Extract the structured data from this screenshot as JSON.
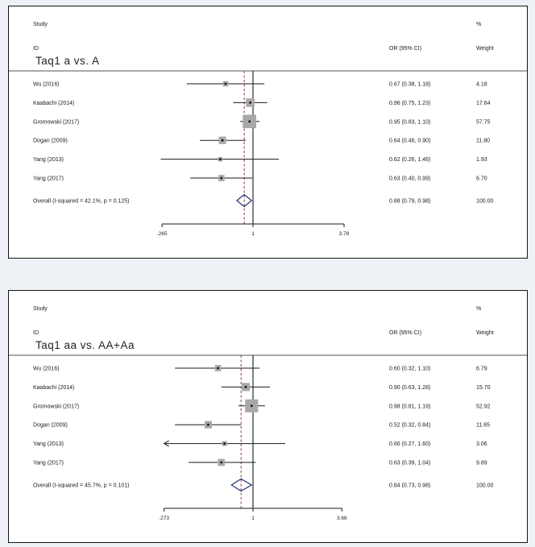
{
  "page": {
    "background_color": "#eef1f6",
    "panel_background_color": "#ffffff",
    "panel_border_color": "#141414"
  },
  "style": {
    "text_color": "#1a1a1a",
    "line_color": "#1a1a1a",
    "square_color": "#a8a8a8",
    "diamond_color": "#273272",
    "dashed_line_color": "#90353b"
  },
  "chart_data": [
    {
      "type": "forest",
      "title": "Taq1 a vs. A",
      "columns": {
        "study": "Study",
        "id": "ID",
        "percent": "%",
        "or_ci": "OR (95% CI)",
        "weight": "Weight"
      },
      "axis": {
        "scale": "log",
        "null_value": 1,
        "ticks": [
          {
            "value": 0.265,
            "label": ".265"
          },
          {
            "value": 1,
            "label": "1"
          },
          {
            "value": 3.78,
            "label": "3.78"
          }
        ]
      },
      "studies": [
        {
          "id": "Wu (2016)",
          "or": 0.67,
          "ci_low": 0.38,
          "ci_high": 1.18,
          "or_ci_text": "0.67 (0.38, 1.18)",
          "weight": 4.18,
          "weight_text": "4.18",
          "clip_low": false
        },
        {
          "id": "Kaabachi (2014)",
          "or": 0.96,
          "ci_low": 0.75,
          "ci_high": 1.23,
          "or_ci_text": "0.96 (0.75, 1.23)",
          "weight": 17.64,
          "weight_text": "17.64",
          "clip_low": false
        },
        {
          "id": "Gromowski (2017)",
          "or": 0.95,
          "ci_low": 0.83,
          "ci_high": 1.1,
          "or_ci_text": "0.95 (0.83, 1.10)",
          "weight": 57.75,
          "weight_text": "57.75",
          "clip_low": false
        },
        {
          "id": "Dogan (2009)",
          "or": 0.64,
          "ci_low": 0.46,
          "ci_high": 0.9,
          "or_ci_text": "0.64 (0.46, 0.90)",
          "weight": 11.8,
          "weight_text": "11.80",
          "clip_low": false
        },
        {
          "id": "Yang (2013)",
          "or": 0.62,
          "ci_low": 0.26,
          "ci_high": 1.46,
          "or_ci_text": "0.62 (0.26, 1.46)",
          "weight": 1.93,
          "weight_text": "1.93",
          "clip_low": false
        },
        {
          "id": "Yang (2017)",
          "or": 0.63,
          "ci_low": 0.4,
          "ci_high": 0.99,
          "or_ci_text": "0.63 (0.40, 0.99)",
          "weight": 6.7,
          "weight_text": "6.70",
          "clip_low": false
        }
      ],
      "overall": {
        "label": "Overall (I-squared = 42.1%, p = 0.125)",
        "or": 0.88,
        "ci_low": 0.79,
        "ci_high": 0.98,
        "or_ci_text": "0.88 (0.79, 0.98)",
        "weight_text": "100.00"
      }
    },
    {
      "type": "forest",
      "title": "Taq1 aa vs. AA+Aa",
      "columns": {
        "study": "Study",
        "id": "ID",
        "percent": "%",
        "or_ci": "OR (95% CI)",
        "weight": "Weight"
      },
      "axis": {
        "scale": "log",
        "null_value": 1,
        "ticks": [
          {
            "value": 0.273,
            "label": ".273"
          },
          {
            "value": 1,
            "label": "1"
          },
          {
            "value": 3.66,
            "label": "3.66"
          }
        ]
      },
      "studies": [
        {
          "id": "Wu (2016)",
          "or": 0.6,
          "ci_low": 0.32,
          "ci_high": 1.1,
          "or_ci_text": "0.60 (0.32, 1.10)",
          "weight": 6.79,
          "weight_text": "6.79",
          "clip_low": false
        },
        {
          "id": "Kaabachi (2014)",
          "or": 0.9,
          "ci_low": 0.63,
          "ci_high": 1.28,
          "or_ci_text": "0.90 (0.63, 1.28)",
          "weight": 15.7,
          "weight_text": "15.70",
          "clip_low": false
        },
        {
          "id": "Gromowski (2017)",
          "or": 0.98,
          "ci_low": 0.81,
          "ci_high": 1.19,
          "or_ci_text": "0.98 (0.81, 1.19)",
          "weight": 52.92,
          "weight_text": "52.92",
          "clip_low": false
        },
        {
          "id": "Dogan (2009)",
          "or": 0.52,
          "ci_low": 0.32,
          "ci_high": 0.84,
          "or_ci_text": "0.52 (0.32, 0.84)",
          "weight": 11.65,
          "weight_text": "11.65",
          "clip_low": false
        },
        {
          "id": "Yang (2013)",
          "or": 0.66,
          "ci_low": 0.27,
          "ci_high": 1.6,
          "or_ci_text": "0.66 (0.27, 1.60)",
          "weight": 3.06,
          "weight_text": "3.06",
          "clip_low": true
        },
        {
          "id": "Yang (2017)",
          "or": 0.63,
          "ci_low": 0.39,
          "ci_high": 1.04,
          "or_ci_text": "0.63 (0.39, 1.04)",
          "weight": 9.89,
          "weight_text": "9.89",
          "clip_low": false
        }
      ],
      "overall": {
        "label": "Overall (I-squared = 45.7%, p = 0.101)",
        "or": 0.84,
        "ci_low": 0.73,
        "ci_high": 0.98,
        "or_ci_text": "0.84 (0.73, 0.98)",
        "weight_text": "100.00"
      }
    }
  ]
}
